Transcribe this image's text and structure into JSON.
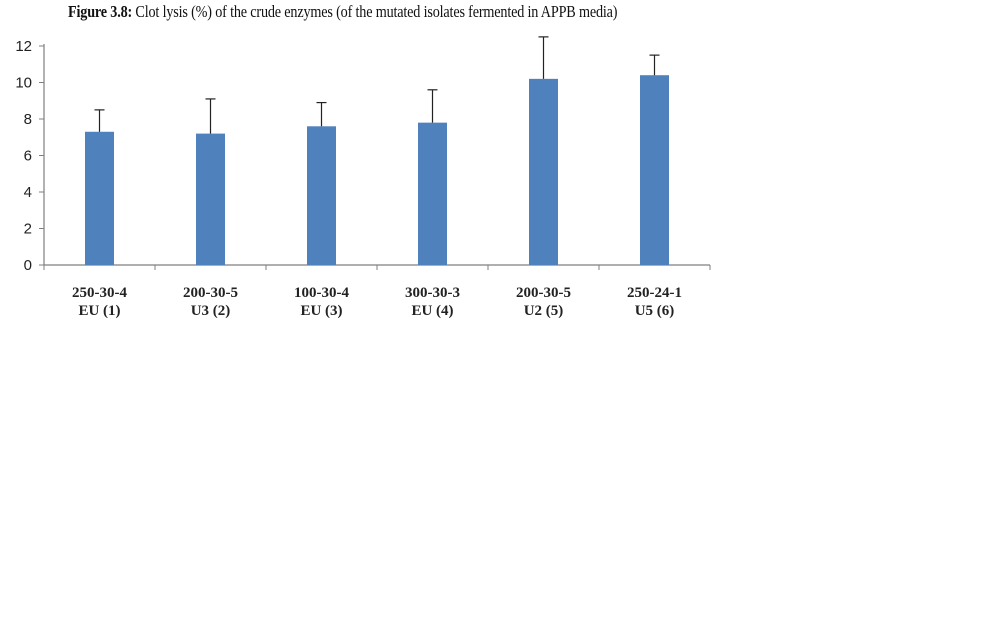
{
  "figure": {
    "title_label": "Figure 3.8:",
    "title_text": " Clot lysis (%) of the crude enzymes (of the mutated isolates fermented in APPB media)"
  },
  "chart_data": {
    "type": "bar",
    "title": "Figure 3.8: Clot lysis (%) of the crude enzymes (of the mutated isolates fermented in APPB media)",
    "xlabel": "",
    "ylabel": "",
    "ylim": [
      0,
      12
    ],
    "yticks": [
      0,
      2,
      4,
      6,
      8,
      10,
      12
    ],
    "grid": false,
    "legend": "none",
    "categories": [
      [
        "250-30-4",
        "EU (1)"
      ],
      [
        "200-30-5",
        "U3 (2)"
      ],
      [
        "100-30-4",
        "EU (3)"
      ],
      [
        "300-30-3",
        "EU (4)"
      ],
      [
        "200-30-5",
        "U2 (5)"
      ],
      [
        "250-24-1",
        "U5 (6)"
      ]
    ],
    "series": [
      {
        "values": [
          7.3,
          7.2,
          7.6,
          7.8,
          10.2,
          10.4
        ],
        "error": [
          1.2,
          1.9,
          1.3,
          1.8,
          2.3,
          1.1
        ]
      }
    ],
    "colors": {
      "bar": "#4f81bd",
      "axis": "#7f7f7f",
      "error_bar": "#222222"
    }
  }
}
